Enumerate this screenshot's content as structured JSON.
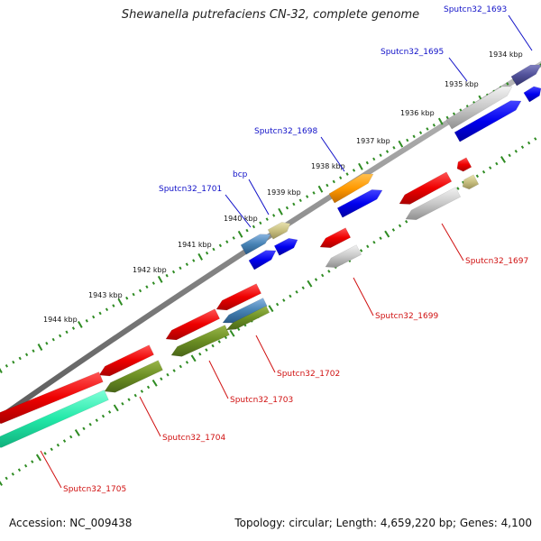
{
  "title": "Shewanella putrefaciens CN-32, complete genome",
  "footer": {
    "accession": "Accession: NC_009438",
    "topology": "Topology: circular; Length: 4,659,220 bp; Genes: 4,100"
  },
  "colors": {
    "backbone": "#8a8a8a",
    "tick": "#2e8b22",
    "label_forward": "#1010c8",
    "label_reverse": "#d01010"
  },
  "ticks": [
    "1934 kbp",
    "1935 kbp",
    "1936 kbp",
    "1937 kbp",
    "1938 kbp",
    "1939 kbp",
    "1940 kbp",
    "1941 kbp",
    "1942 kbp",
    "1943 kbp",
    "1944 kbp"
  ],
  "genes": [
    {
      "label": "Sputcn32_1693",
      "strand": "forward"
    },
    {
      "label": "Sputcn32_1695",
      "strand": "forward"
    },
    {
      "label": "Sputcn32_1698",
      "strand": "forward"
    },
    {
      "label": "bcp",
      "strand": "forward"
    },
    {
      "label": "Sputcn32_1701",
      "strand": "forward"
    },
    {
      "label": "Sputcn32_1697",
      "strand": "reverse"
    },
    {
      "label": "Sputcn32_1699",
      "strand": "reverse"
    },
    {
      "label": "Sputcn32_1702",
      "strand": "reverse"
    },
    {
      "label": "Sputcn32_1703",
      "strand": "reverse"
    },
    {
      "label": "Sputcn32_1704",
      "strand": "reverse"
    },
    {
      "label": "Sputcn32_1705",
      "strand": "reverse"
    }
  ]
}
